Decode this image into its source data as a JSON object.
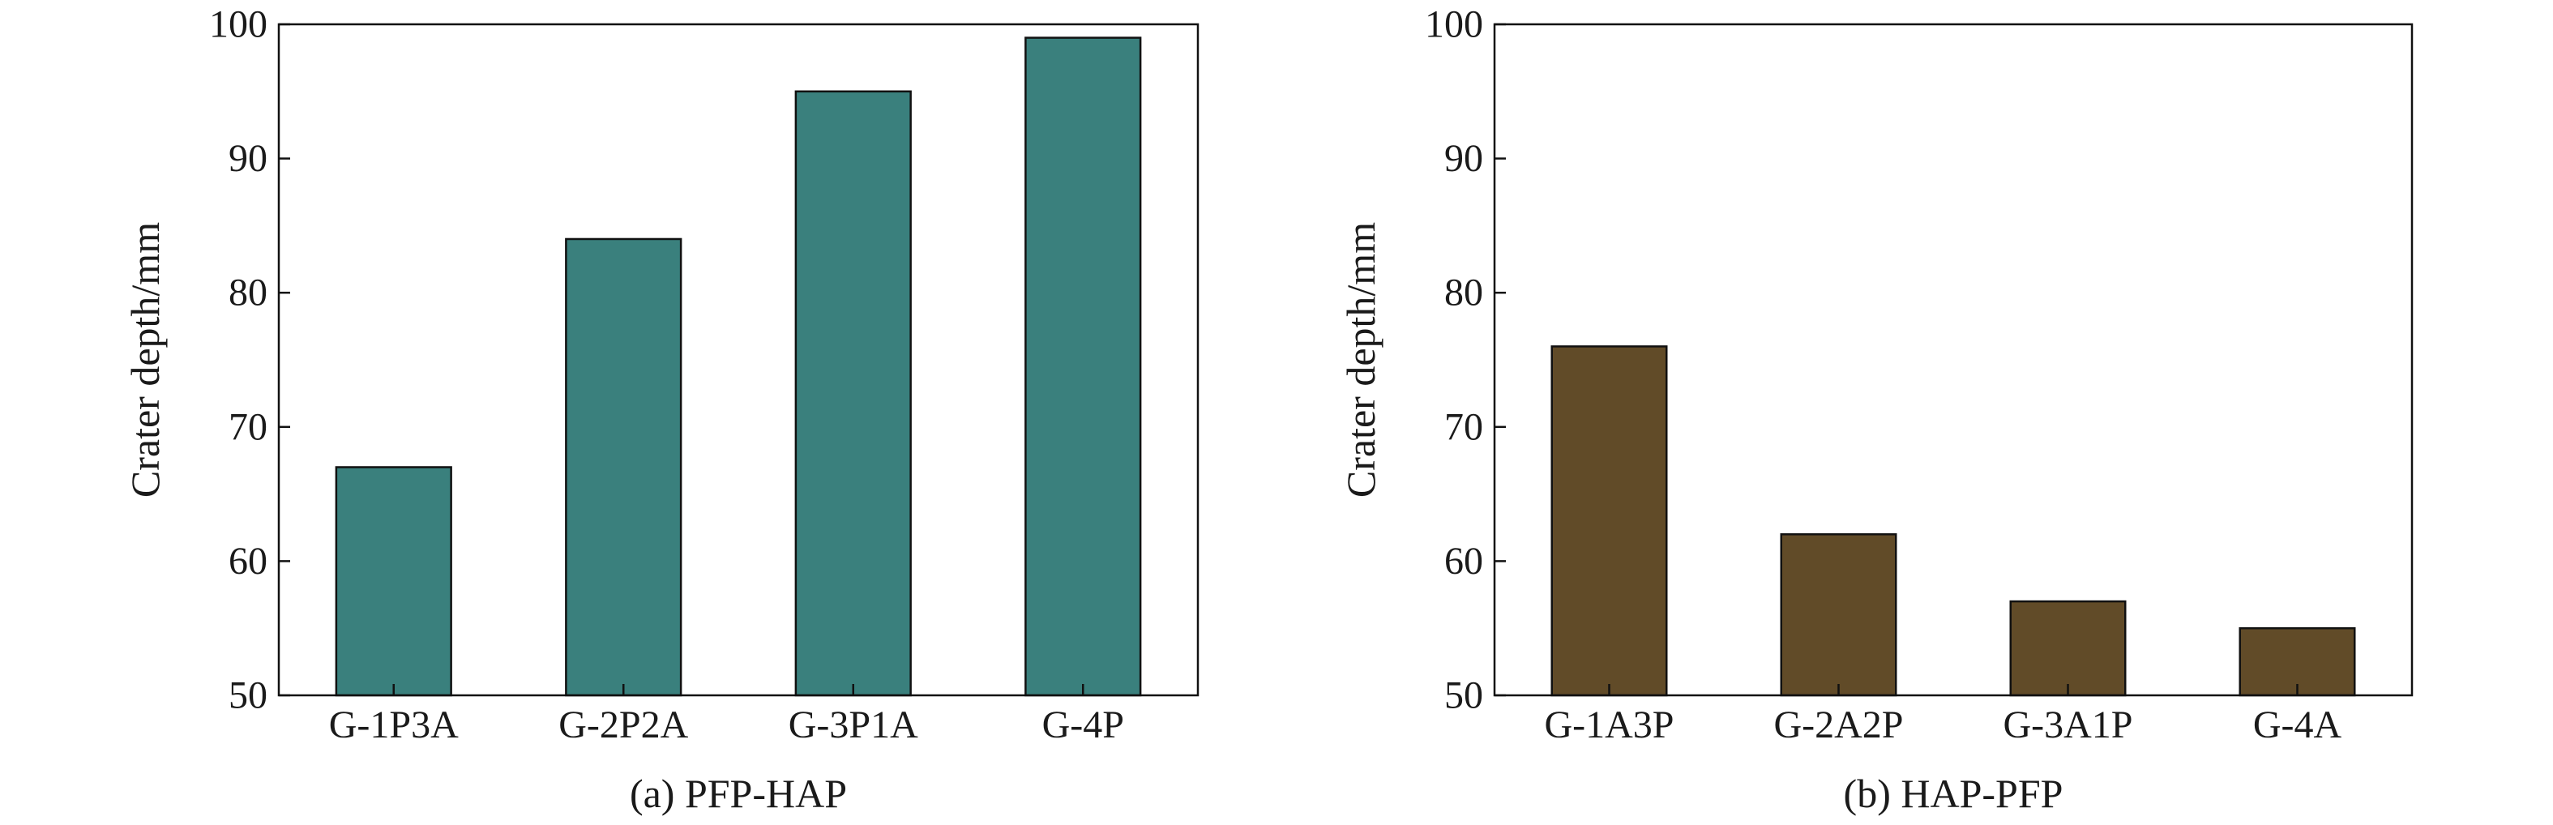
{
  "chart_data": [
    {
      "type": "bar",
      "caption": "(a) PFP-HAP",
      "ylabel": "Crater depth/mm",
      "xlabel": "",
      "ylim": [
        50,
        100
      ],
      "yticks": [
        50,
        60,
        70,
        80,
        90,
        100
      ],
      "categories": [
        "G-1P3A",
        "G-2P2A",
        "G-3P1A",
        "G-4P"
      ],
      "values": [
        67,
        84,
        95,
        99
      ],
      "color": "#3a807d",
      "grid": false
    },
    {
      "type": "bar",
      "caption": "(b) HAP-PFP",
      "ylabel": "Crater depth/mm",
      "xlabel": "",
      "ylim": [
        50,
        100
      ],
      "yticks": [
        50,
        60,
        70,
        80,
        90,
        100
      ],
      "categories": [
        "G-1A3P",
        "G-2A2P",
        "G-3A1P",
        "G-4A"
      ],
      "values": [
        76,
        62,
        57,
        55
      ],
      "color": "#614b28",
      "grid": false
    }
  ]
}
